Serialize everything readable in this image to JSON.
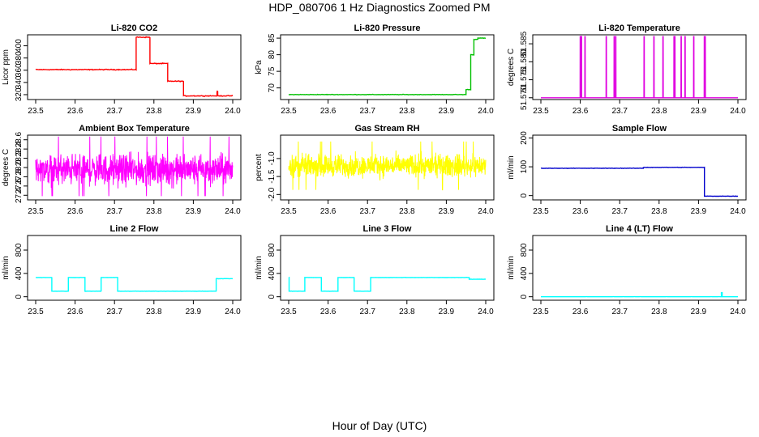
{
  "page": {
    "title": "HDP_080706  1 Hz Diagnostics Zoomed PM",
    "xlabel": "Hour of Day (UTC)"
  },
  "chart_data": [
    {
      "type": "line",
      "title": "Li-820 CO2",
      "ylabel": "Licor ppm",
      "color": "#ff0000",
      "xlim": [
        23.5,
        24.0
      ],
      "ylim": [
        312,
        418
      ],
      "xticks": [
        "23.5",
        "23.6",
        "23.7",
        "23.8",
        "23.9",
        "24.0"
      ],
      "yticks": [
        "320",
        "340",
        "360",
        "380",
        "400"
      ],
      "pattern": "step",
      "noise": 1.0,
      "segments": [
        [
          23.5,
          23.755,
          361
        ],
        [
          23.755,
          23.79,
          414
        ],
        [
          23.79,
          23.835,
          371
        ],
        [
          23.835,
          23.875,
          342
        ],
        [
          23.875,
          23.96,
          318
        ],
        [
          23.96,
          23.962,
          325
        ],
        [
          23.962,
          24.0,
          318
        ]
      ]
    },
    {
      "type": "line",
      "title": "Li-820 Pressure",
      "ylabel": "kPa",
      "color": "#00c000",
      "xlim": [
        23.5,
        24.0
      ],
      "ylim": [
        66.5,
        86
      ],
      "xticks": [
        "23.5",
        "23.6",
        "23.7",
        "23.8",
        "23.9",
        "24.0"
      ],
      "yticks": [
        "70",
        "75",
        "80",
        "85"
      ],
      "pattern": "step",
      "noise": 0.1,
      "segments": [
        [
          23.5,
          23.95,
          68.0
        ],
        [
          23.95,
          23.962,
          69.5
        ],
        [
          23.962,
          23.97,
          80.0
        ],
        [
          23.97,
          23.98,
          84.6
        ],
        [
          23.98,
          24.0,
          85.0
        ]
      ]
    },
    {
      "type": "line",
      "title": "Li-820 Temperature",
      "ylabel": "degrees C",
      "color": "#e000e0",
      "xlim": [
        23.5,
        24.0
      ],
      "ylim": [
        51.5695,
        51.5875
      ],
      "xticks": [
        "23.5",
        "23.6",
        "23.7",
        "23.8",
        "23.9",
        "24.0"
      ],
      "yticks": [
        "51.570",
        "51.575",
        "51.580",
        "51.585"
      ],
      "pattern": "spikes",
      "baseline": 51.57,
      "peak": 51.587,
      "spikes_x": [
        23.6,
        23.603,
        23.612,
        23.666,
        23.686,
        23.69,
        23.762,
        23.787,
        23.81,
        23.838,
        23.84,
        23.856,
        23.866,
        23.888,
        23.915,
        23.917
      ]
    },
    {
      "type": "line",
      "title": "Ambient Box Temperature",
      "ylabel": "degrees C",
      "color": "#ff00ff",
      "xlim": [
        23.5,
        24.0
      ],
      "ylim": [
        27.3,
        28.7
      ],
      "xticks": [
        "23.5",
        "23.6",
        "23.7",
        "23.8",
        "23.9",
        "24.0"
      ],
      "yticks": [
        "27.4",
        "27.6",
        "27.8",
        "28.0",
        "28.2",
        "28.4",
        "28.6"
      ],
      "pattern": "noise",
      "center": 27.95,
      "amplitude": 0.3,
      "max": 28.68,
      "min": 27.38
    },
    {
      "type": "line",
      "title": "Gas Stream RH",
      "ylabel": "percent",
      "color": "#ffff00",
      "xlim": [
        23.5,
        24.0
      ],
      "ylim": [
        -2.15,
        -0.35
      ],
      "xticks": [
        "23.5",
        "23.6",
        "23.7",
        "23.8",
        "23.9",
        "24.0"
      ],
      "yticks": [
        "-2.0",
        "-1.5",
        "-1.0"
      ],
      "pattern": "noise",
      "center": -1.2,
      "amplitude": 0.28,
      "max": -0.45,
      "min": -2.05
    },
    {
      "type": "line",
      "title": "Sample Flow",
      "ylabel": "ml/min",
      "color": "#0000cc",
      "xlim": [
        23.5,
        24.0
      ],
      "ylim": [
        -15,
        210
      ],
      "xticks": [
        "23.5",
        "23.6",
        "23.7",
        "23.8",
        "23.9",
        "24.0"
      ],
      "yticks": [
        "0",
        "100",
        "200"
      ],
      "pattern": "step",
      "noise": 1.0,
      "segments": [
        [
          23.5,
          23.76,
          95
        ],
        [
          23.76,
          23.915,
          98
        ],
        [
          23.915,
          24.0,
          -2
        ]
      ]
    },
    {
      "type": "line",
      "title": "Line 2 Flow",
      "ylabel": "ml/min",
      "color": "#00ffff",
      "xlim": [
        23.5,
        24.0
      ],
      "ylim": [
        -60,
        1050
      ],
      "xticks": [
        "23.5",
        "23.6",
        "23.7",
        "23.8",
        "23.9",
        "24.0"
      ],
      "yticks": [
        "0",
        "400",
        "800"
      ],
      "pattern": "step",
      "noise": 3,
      "segments": [
        [
          23.5,
          23.541,
          330
        ],
        [
          23.541,
          23.583,
          95
        ],
        [
          23.583,
          23.625,
          330
        ],
        [
          23.625,
          23.666,
          95
        ],
        [
          23.666,
          23.708,
          330
        ],
        [
          23.708,
          23.958,
          95
        ],
        [
          23.958,
          24.0,
          310
        ]
      ]
    },
    {
      "type": "line",
      "title": "Line 3 Flow",
      "ylabel": "ml/min",
      "color": "#00ffff",
      "xlim": [
        23.5,
        24.0
      ],
      "ylim": [
        -60,
        1050
      ],
      "xticks": [
        "23.5",
        "23.6",
        "23.7",
        "23.8",
        "23.9",
        "24.0"
      ],
      "yticks": [
        "0",
        "400",
        "800"
      ],
      "pattern": "step",
      "noise": 3,
      "segments": [
        [
          23.5,
          23.501,
          330
        ],
        [
          23.501,
          23.541,
          95
        ],
        [
          23.541,
          23.583,
          330
        ],
        [
          23.583,
          23.625,
          95
        ],
        [
          23.625,
          23.666,
          330
        ],
        [
          23.666,
          23.708,
          95
        ],
        [
          23.708,
          23.958,
          330
        ],
        [
          23.958,
          24.0,
          300
        ]
      ]
    },
    {
      "type": "line",
      "title": "Line 4 (LT) Flow",
      "ylabel": "ml/min",
      "color": "#00ffff",
      "xlim": [
        23.5,
        24.0
      ],
      "ylim": [
        -60,
        1050
      ],
      "xticks": [
        "23.5",
        "23.6",
        "23.7",
        "23.8",
        "23.9",
        "24.0"
      ],
      "yticks": [
        "0",
        "400",
        "800"
      ],
      "pattern": "step",
      "noise": 1,
      "segments": [
        [
          23.5,
          23.958,
          0
        ],
        [
          23.958,
          23.96,
          70
        ],
        [
          23.96,
          24.0,
          0
        ]
      ]
    }
  ]
}
